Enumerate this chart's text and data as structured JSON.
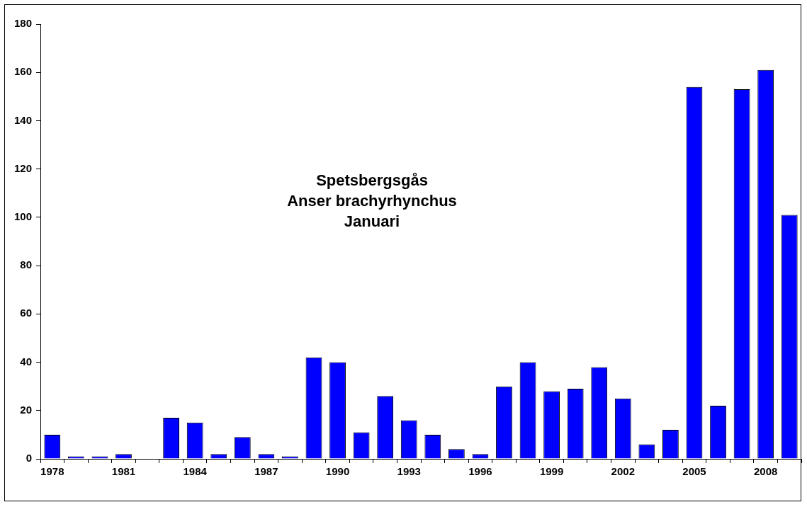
{
  "chart_data": {
    "type": "bar",
    "title": "Spetsbergsgås\nAnser brachyrhynchus\nJanuari",
    "categories": [
      "1978",
      null,
      null,
      "1981",
      null,
      null,
      "1984",
      null,
      null,
      "1987",
      null,
      null,
      "1990",
      null,
      null,
      "1993",
      null,
      null,
      "1996",
      null,
      null,
      "1999",
      null,
      null,
      "2002",
      null,
      null,
      "2005",
      null,
      null,
      "2008",
      null
    ],
    "values": [
      10,
      1,
      1,
      2,
      0,
      17,
      15,
      2,
      9,
      2,
      1,
      42,
      40,
      11,
      26,
      16,
      10,
      4,
      2,
      30,
      40,
      28,
      29,
      38,
      25,
      6,
      12,
      154,
      22,
      153,
      161,
      101
    ],
    "color": "#0000ff",
    "ylim": [
      0,
      180
    ],
    "yticks": [
      0,
      20,
      40,
      60,
      80,
      100,
      120,
      140,
      160,
      180
    ]
  }
}
